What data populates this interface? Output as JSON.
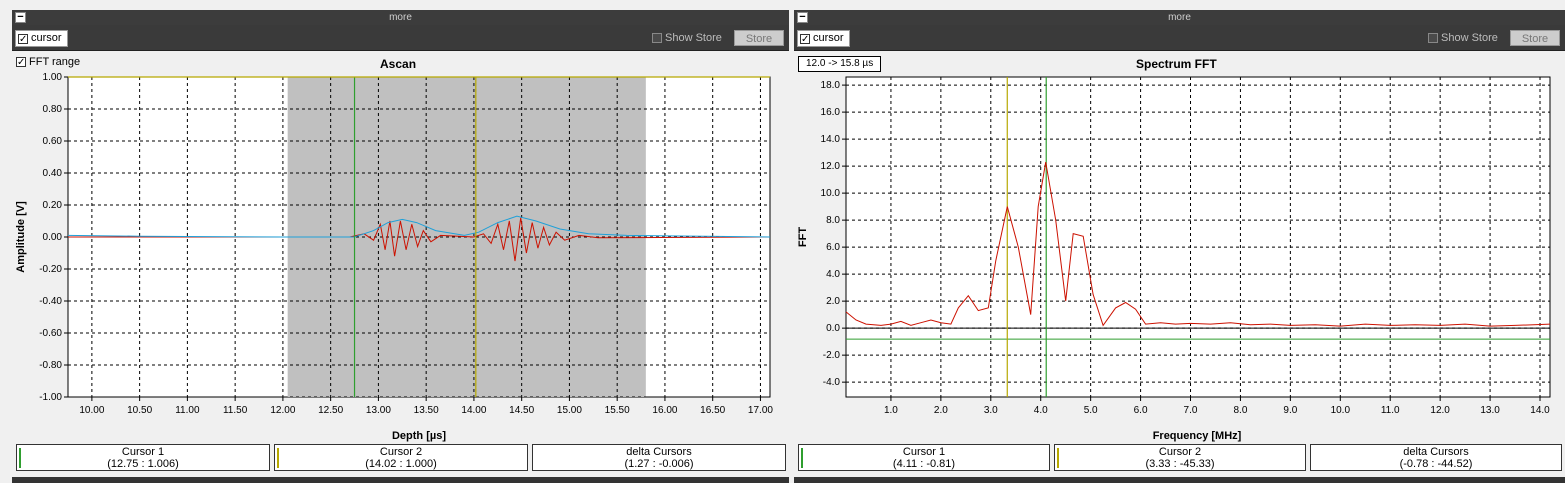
{
  "colors": {
    "signal": "#cc1100",
    "envelope": "#1fa0d8",
    "cursor1": "#2f9e2f",
    "cursor2": "#b6a800",
    "gate": "#c0c0c0"
  },
  "left": {
    "header_label": "more",
    "cursor_label": "cursor",
    "show_store_label": "Show Store",
    "store_label": "Store",
    "fft_range_label": "FFT range",
    "title": "Ascan",
    "xlabel": "Depth [µs]",
    "ylabel": "Amplitude [V]",
    "xticks": [
      "10.00",
      "10.50",
      "11.00",
      "11.50",
      "12.00",
      "12.50",
      "13.00",
      "13.50",
      "14.00",
      "14.50",
      "15.00",
      "15.50",
      "16.00",
      "16.50",
      "17.00"
    ],
    "yticks": [
      "1.00",
      "0.80",
      "0.60",
      "0.40",
      "0.20",
      "0.00",
      "-0.20",
      "-0.40",
      "-0.60",
      "-0.80",
      "-1.00"
    ],
    "readouts": [
      {
        "label": "Cursor 1",
        "value": "(12.75 : 1.006)"
      },
      {
        "label": "Cursor 2",
        "value": "(14.02 : 1.000)"
      },
      {
        "label": "delta Cursors",
        "value": "(1.27 : -0.006)"
      }
    ]
  },
  "right": {
    "header_label": "more",
    "cursor_label": "cursor",
    "show_store_label": "Show Store",
    "store_label": "Store",
    "range_label": "12.0 -> 15.8 µs",
    "title": "Spectrum FFT",
    "xlabel": "Frequency [MHz]",
    "ylabel": "FFT",
    "xticks": [
      "1.0",
      "2.0",
      "3.0",
      "4.0",
      "5.0",
      "6.0",
      "7.0",
      "8.0",
      "9.0",
      "10.0",
      "11.0",
      "12.0",
      "13.0",
      "14.0"
    ],
    "yticks": [
      "18.0",
      "16.0",
      "14.0",
      "12.0",
      "10.0",
      "8.0",
      "6.0",
      "4.0",
      "2.0",
      "0.0",
      "-2.0",
      "-4.0"
    ],
    "readouts": [
      {
        "label": "Cursor 1",
        "value": "(4.11 : -0.81)"
      },
      {
        "label": "Cursor 2",
        "value": "(3.33 : -45.33)"
      },
      {
        "label": "delta Cursors",
        "value": "(-0.78 : -44.52)"
      }
    ]
  },
  "chart_data": [
    {
      "type": "line",
      "title": "Ascan",
      "xlabel": "Depth [µs]",
      "ylabel": "Amplitude [V]",
      "xlim": [
        9.75,
        17.1
      ],
      "ylim": [
        -1.0,
        1.0
      ],
      "grid": true,
      "fft_gate": [
        12.05,
        15.8
      ],
      "cursors": [
        12.75,
        14.02
      ],
      "series": [
        {
          "values": [
            [
              9.75,
              0.0
            ],
            [
              12.7,
              0.0
            ],
            [
              12.85,
              0.02
            ],
            [
              12.95,
              -0.02
            ],
            [
              13.02,
              0.08
            ],
            [
              13.07,
              -0.08
            ],
            [
              13.12,
              0.1
            ],
            [
              13.17,
              -0.12
            ],
            [
              13.23,
              0.1
            ],
            [
              13.29,
              -0.08
            ],
            [
              13.35,
              0.08
            ],
            [
              13.41,
              -0.06
            ],
            [
              13.47,
              0.04
            ],
            [
              13.55,
              -0.03
            ],
            [
              13.65,
              0.01
            ],
            [
              14.0,
              0.0
            ],
            [
              14.1,
              0.02
            ],
            [
              14.18,
              -0.04
            ],
            [
              14.25,
              0.08
            ],
            [
              14.31,
              -0.08
            ],
            [
              14.37,
              0.1
            ],
            [
              14.43,
              -0.15
            ],
            [
              14.49,
              0.12
            ],
            [
              14.55,
              -0.1
            ],
            [
              14.61,
              0.09
            ],
            [
              14.67,
              -0.07
            ],
            [
              14.73,
              0.06
            ],
            [
              14.79,
              -0.05
            ],
            [
              14.86,
              0.03
            ],
            [
              14.95,
              -0.02
            ],
            [
              15.1,
              0.01
            ],
            [
              15.3,
              -0.005
            ],
            [
              17.1,
              0.0
            ]
          ]
        },
        {
          "values": [
            [
              9.75,
              0.01
            ],
            [
              10.5,
              0.005
            ],
            [
              12.0,
              0.0
            ],
            [
              12.75,
              0.0
            ],
            [
              12.95,
              0.04
            ],
            [
              13.1,
              0.09
            ],
            [
              13.25,
              0.11
            ],
            [
              13.4,
              0.09
            ],
            [
              13.6,
              0.04
            ],
            [
              13.9,
              0.01
            ],
            [
              14.05,
              0.03
            ],
            [
              14.25,
              0.09
            ],
            [
              14.45,
              0.13
            ],
            [
              14.65,
              0.1
            ],
            [
              14.9,
              0.05
            ],
            [
              15.2,
              0.02
            ],
            [
              15.6,
              0.01
            ],
            [
              17.1,
              0.0
            ]
          ]
        }
      ]
    },
    {
      "type": "line",
      "title": "Spectrum FFT",
      "xlabel": "Frequency [MHz]",
      "ylabel": "FFT",
      "xlim": [
        0.1,
        14.2
      ],
      "ylim": [
        -5.1,
        18.6
      ],
      "grid": true,
      "cursors": [
        3.33,
        4.11
      ],
      "reference_lines": [
        0.0,
        -0.81
      ],
      "series": [
        {
          "values": [
            [
              0.1,
              1.2
            ],
            [
              0.3,
              0.6
            ],
            [
              0.5,
              0.3
            ],
            [
              0.8,
              0.2
            ],
            [
              1.0,
              0.3
            ],
            [
              1.2,
              0.5
            ],
            [
              1.4,
              0.2
            ],
            [
              1.6,
              0.4
            ],
            [
              1.8,
              0.6
            ],
            [
              2.0,
              0.4
            ],
            [
              2.2,
              0.3
            ],
            [
              2.35,
              1.5
            ],
            [
              2.55,
              2.4
            ],
            [
              2.75,
              1.3
            ],
            [
              2.95,
              1.5
            ],
            [
              3.1,
              5.0
            ],
            [
              3.33,
              9.0
            ],
            [
              3.55,
              6.0
            ],
            [
              3.8,
              1.0
            ],
            [
              3.95,
              9.0
            ],
            [
              4.1,
              12.3
            ],
            [
              4.3,
              8.0
            ],
            [
              4.5,
              2.0
            ],
            [
              4.65,
              7.0
            ],
            [
              4.85,
              6.8
            ],
            [
              5.05,
              2.5
            ],
            [
              5.25,
              0.2
            ],
            [
              5.5,
              1.5
            ],
            [
              5.7,
              1.9
            ],
            [
              5.9,
              1.4
            ],
            [
              6.1,
              0.3
            ],
            [
              6.4,
              0.4
            ],
            [
              6.7,
              0.3
            ],
            [
              7.0,
              0.35
            ],
            [
              7.4,
              0.3
            ],
            [
              7.8,
              0.4
            ],
            [
              8.2,
              0.25
            ],
            [
              8.6,
              0.3
            ],
            [
              9.0,
              0.2
            ],
            [
              9.5,
              0.25
            ],
            [
              10.0,
              0.15
            ],
            [
              10.5,
              0.3
            ],
            [
              11.0,
              0.2
            ],
            [
              11.5,
              0.25
            ],
            [
              12.0,
              0.2
            ],
            [
              12.5,
              0.3
            ],
            [
              13.0,
              0.15
            ],
            [
              13.5,
              0.2
            ],
            [
              14.2,
              0.3
            ]
          ]
        }
      ]
    }
  ]
}
